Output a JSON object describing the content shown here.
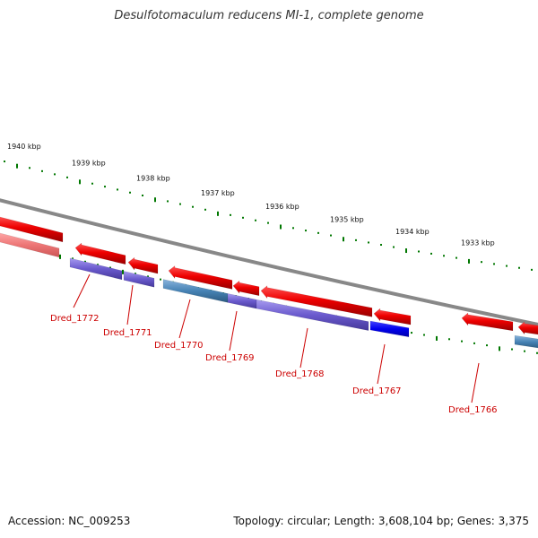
{
  "header": {
    "title": "Desulfotomaculum reducens MI-1, complete genome"
  },
  "footer": {
    "accession": "Accession: NC_009253",
    "summary": "Topology: circular; Length: 3,608,104 bp; Genes: 3,375"
  },
  "scale_ticks": [
    {
      "label": "1940 kbp",
      "kbp": 1940
    },
    {
      "label": "1939 kbp",
      "kbp": 1939
    },
    {
      "label": "1938 kbp",
      "kbp": 1938
    },
    {
      "label": "1937 kbp",
      "kbp": 1937
    },
    {
      "label": "1936 kbp",
      "kbp": 1936
    },
    {
      "label": "1935 kbp",
      "kbp": 1935
    },
    {
      "label": "1934 kbp",
      "kbp": 1934
    },
    {
      "label": "1933 kbp",
      "kbp": 1933
    }
  ],
  "gene_labels": [
    {
      "text": "Dred_1772"
    },
    {
      "text": "Dred_1771"
    },
    {
      "text": "Dred_1770"
    },
    {
      "text": "Dred_1769"
    },
    {
      "text": "Dred_1768"
    },
    {
      "text": "Dred_1767"
    },
    {
      "text": "Dred_1766"
    }
  ],
  "colors": {
    "forward_gene": "#ee0000",
    "forward_gene_faded": "#ee6666",
    "cds_purple": "#6a5acd",
    "cds_steelblue": "#4682b4",
    "cds_blue": "#0000ee",
    "backbone": "#888888",
    "tick_green": "#007700",
    "label_red": "#cc0000"
  }
}
